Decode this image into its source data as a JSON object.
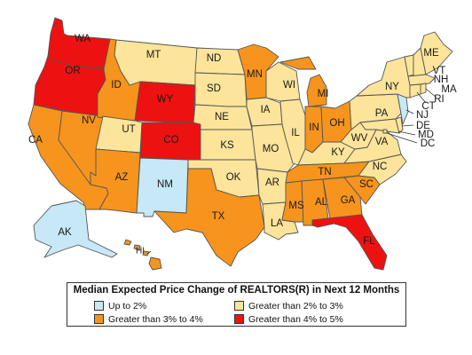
{
  "legend": {
    "title": "Median Expected Price Change of REALTORS(R) in Next 12 Months",
    "items": [
      {
        "label": "Up to 2%",
        "color": "#c6e8f7"
      },
      {
        "label": "Greater than 2% to 3%",
        "color": "#fce49a"
      },
      {
        "label": "Greater than 3% to 4%",
        "color": "#f7941d"
      },
      {
        "label": "Greater than 4% to 5%",
        "color": "#ee1111"
      }
    ]
  },
  "colors": {
    "cat1": "#c6e8f7",
    "cat2": "#fce49a",
    "cat3": "#f7941d",
    "cat4": "#ee1111",
    "border": "#555555"
  },
  "states": {
    "WA": {
      "label": "WA",
      "category": 4
    },
    "OR": {
      "label": "OR",
      "category": 4
    },
    "CA": {
      "label": "CA",
      "category": 3
    },
    "NV": {
      "label": "NV",
      "category": 3
    },
    "ID": {
      "label": "ID",
      "category": 3
    },
    "MT": {
      "label": "MT",
      "category": 2
    },
    "WY": {
      "label": "WY",
      "category": 4
    },
    "UT": {
      "label": "UT",
      "category": 2
    },
    "AZ": {
      "label": "AZ",
      "category": 3
    },
    "CO": {
      "label": "CO",
      "category": 4
    },
    "NM": {
      "label": "NM",
      "category": 1
    },
    "ND": {
      "label": "ND",
      "category": 2
    },
    "SD": {
      "label": "SD",
      "category": 2
    },
    "NE": {
      "label": "NE",
      "category": 2
    },
    "KS": {
      "label": "KS",
      "category": 2
    },
    "OK": {
      "label": "OK",
      "category": 2
    },
    "TX": {
      "label": "TX",
      "category": 3
    },
    "MN": {
      "label": "MN",
      "category": 3
    },
    "IA": {
      "label": "IA",
      "category": 2
    },
    "MO": {
      "label": "MO",
      "category": 2
    },
    "AR": {
      "label": "AR",
      "category": 2
    },
    "LA": {
      "label": "LA",
      "category": 2
    },
    "WI": {
      "label": "WI",
      "category": 2
    },
    "IL": {
      "label": "IL",
      "category": 2
    },
    "MI": {
      "label": "MI",
      "category": 3
    },
    "IN": {
      "label": "IN",
      "category": 3
    },
    "OH": {
      "label": "OH",
      "category": 3
    },
    "KY": {
      "label": "KY",
      "category": 2
    },
    "TN": {
      "label": "TN",
      "category": 3
    },
    "MS": {
      "label": "MS",
      "category": 3
    },
    "AL": {
      "label": "AL",
      "category": 3
    },
    "GA": {
      "label": "GA",
      "category": 3
    },
    "FL": {
      "label": "FL",
      "category": 4
    },
    "SC": {
      "label": "SC",
      "category": 3
    },
    "NC": {
      "label": "NC",
      "category": 2
    },
    "VA": {
      "label": "VA",
      "category": 2
    },
    "WV": {
      "label": "WV",
      "category": 2
    },
    "PA": {
      "label": "PA",
      "category": 2
    },
    "NY": {
      "label": "NY",
      "category": 2
    },
    "ME": {
      "label": "ME",
      "category": 2
    },
    "VT": {
      "label": "VT",
      "category": 2
    },
    "NH": {
      "label": "NH",
      "category": 2
    },
    "MA": {
      "label": "MA",
      "category": 2
    },
    "RI": {
      "label": "RI",
      "category": 2
    },
    "CT": {
      "label": "CT",
      "category": 2
    },
    "NJ": {
      "label": "NJ",
      "category": 1
    },
    "DE": {
      "label": "DE",
      "category": 2
    },
    "MD": {
      "label": "MD",
      "category": 2
    },
    "DC": {
      "label": "DC",
      "category": 2
    },
    "AK": {
      "label": "AK",
      "category": 1
    },
    "HI": {
      "label": "HI",
      "category": 3
    }
  }
}
